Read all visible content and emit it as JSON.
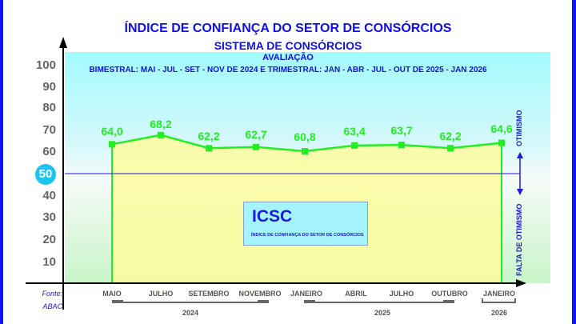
{
  "header": {
    "title": "ÍNDICE DE CONFIANÇA DO SETOR DE CONSÓRCIOS",
    "subtitle": "SISTEMA DE CONSÓRCIOS",
    "section": "AVALIAÇÃO",
    "period": "BIMESTRAL: MAI - JUL - SET - NOV DE 2024 E TRIMESTRAL: JAN - ABR - JUL - OUT DE 2025 - JAN 2026"
  },
  "y_axis": {
    "ticks": [
      "100",
      "90",
      "80",
      "70",
      "60",
      "50",
      "40",
      "30",
      "20",
      "10"
    ],
    "highlight": "50"
  },
  "x_axis": {
    "labels": [
      "MAIO",
      "JULHO",
      "SETEMBRO",
      "NOVEMBRO",
      "JANEIRO",
      "ABRIL",
      "JULHO",
      "OUTUBRO",
      "JANEIRO"
    ],
    "years": [
      "2024",
      "2025",
      "2026"
    ]
  },
  "values_display": [
    "64,0",
    "68,2",
    "62,2",
    "62,7",
    "60,8",
    "63,4",
    "63,7",
    "62,2",
    "64,6"
  ],
  "legend": {
    "title": "ICSC",
    "subtitle": "ÍNDICE DE CONFIANÇA DO SETOR DE CONSÓRCIOS"
  },
  "annotations": {
    "above": "OTIMISMO",
    "below": "FALTA DE OTIMISMO"
  },
  "source": {
    "label": "Fonte:",
    "value": "ABAC"
  },
  "colors": {
    "title": "#1010e8",
    "line": "#22ee22",
    "area": "#fdfb9c",
    "threshold": "#1a1ae0",
    "border": "#0a14ff",
    "badge": "#1cc4f0"
  },
  "chart_data": {
    "type": "line",
    "title": "ÍNDICE DE CONFIANÇA DO SETOR DE CONSÓRCIOS",
    "subtitle": "SISTEMA DE CONSÓRCIOS - AVALIAÇÃO - BIMESTRAL: MAI - JUL - SET - NOV DE 2024 E TRIMESTRAL: JAN - ABR - JUL - OUT DE 2025 - JAN 2026",
    "categories": [
      "MAIO 2024",
      "JULHO 2024",
      "SETEMBRO 2024",
      "NOVEMBRO 2024",
      "JANEIRO 2025",
      "ABRIL 2025",
      "JULHO 2025",
      "OUTUBRO 2025",
      "JANEIRO 2026"
    ],
    "series": [
      {
        "name": "ICSC",
        "values": [
          64.0,
          68.2,
          62.2,
          62.7,
          60.8,
          63.4,
          63.7,
          62.2,
          64.6
        ]
      }
    ],
    "xlabel": "",
    "ylabel": "",
    "ylim": [
      0,
      100
    ],
    "yticks": [
      10,
      20,
      30,
      40,
      50,
      60,
      70,
      80,
      90,
      100
    ],
    "threshold": {
      "value": 50,
      "above_label": "OTIMISMO",
      "below_label": "FALTA DE OTIMISMO"
    },
    "grid": false,
    "legend_position": "center-bottom box",
    "source": "Fonte: ABAC"
  }
}
